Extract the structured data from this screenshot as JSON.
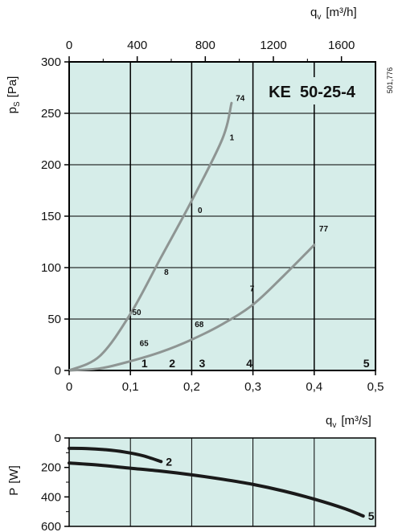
{
  "chart_data": [
    {
      "type": "line",
      "model_label": "KE  50-25-4",
      "reference_code": "501,776",
      "xlabel": "q",
      "xlabel_sub": "v",
      "xlabel_unit": "[m³/s]",
      "ylabel": "p",
      "ylabel_sub": "S",
      "ylabel_unit": "[Pa]",
      "xlim": [
        0,
        0.5
      ],
      "ylim": [
        0,
        300
      ],
      "x_ticks": [
        "0",
        "0,1",
        "0,2",
        "0,3",
        "0,4",
        "0,5"
      ],
      "y_ticks": [
        "0",
        "50",
        "100",
        "150",
        "200",
        "250",
        "300"
      ],
      "top_axis": {
        "label": "q",
        "label_sub": "v",
        "unit": "[m³/h]",
        "ticks": [
          "0",
          "400",
          "800",
          "1200",
          "1600"
        ],
        "tick_values": [
          0,
          400,
          800,
          1200,
          1600
        ]
      },
      "grid": true,
      "background_color": "#d6ede9",
      "grid_color": "#000000",
      "curve_color": "#8e9593",
      "series": [
        {
          "x": [
            0,
            0.05,
            0.1,
            0.15,
            0.2,
            0.25,
            0.265
          ],
          "y": [
            0,
            14,
            55,
            110,
            165,
            225,
            260
          ]
        },
        {
          "x": [
            0,
            0.05,
            0.1,
            0.15,
            0.2,
            0.25,
            0.3,
            0.35,
            0.4
          ],
          "y": [
            0,
            2,
            9,
            18,
            30,
            45,
            64,
            92,
            122
          ]
        }
      ],
      "point_labels": [
        {
          "text": "74",
          "x": 0.272,
          "y": 262
        },
        {
          "text": "1",
          "x": 0.262,
          "y": 224
        },
        {
          "text": "0",
          "x": 0.21,
          "y": 153
        },
        {
          "text": "8",
          "x": 0.155,
          "y": 93
        },
        {
          "text": "50",
          "x": 0.103,
          "y": 54
        },
        {
          "text": "77",
          "x": 0.408,
          "y": 135
        },
        {
          "text": "7",
          "x": 0.295,
          "y": 77
        },
        {
          "text": "68",
          "x": 0.205,
          "y": 42
        },
        {
          "text": "65",
          "x": 0.115,
          "y": 24
        }
      ],
      "series_numbers": [
        {
          "text": "1",
          "x": 0.118
        },
        {
          "text": "2",
          "x": 0.163
        },
        {
          "text": "3",
          "x": 0.212
        },
        {
          "text": "4",
          "x": 0.289
        },
        {
          "text": "5",
          "x": 0.48
        }
      ]
    },
    {
      "type": "line",
      "xlabel": "q",
      "xlabel_sub": "v",
      "xlabel_unit": "[m³/s]",
      "ylabel": "P",
      "ylabel_unit": "[W]",
      "xlim": [
        0,
        0.5
      ],
      "ylim": [
        0,
        600
      ],
      "y_inverted": true,
      "y_ticks": [
        "0",
        "200",
        "400",
        "600"
      ],
      "background_color": "#d6ede9",
      "series": [
        {
          "name": "2",
          "x": [
            0,
            0.03,
            0.06,
            0.09,
            0.12,
            0.15
          ],
          "y": [
            70,
            72,
            80,
            95,
            120,
            160
          ]
        },
        {
          "name": "5",
          "x": [
            0,
            0.05,
            0.1,
            0.15,
            0.2,
            0.25,
            0.3,
            0.35,
            0.4,
            0.45,
            0.48
          ],
          "y": [
            170,
            185,
            205,
            225,
            250,
            280,
            315,
            360,
            415,
            480,
            530
          ]
        }
      ]
    }
  ]
}
